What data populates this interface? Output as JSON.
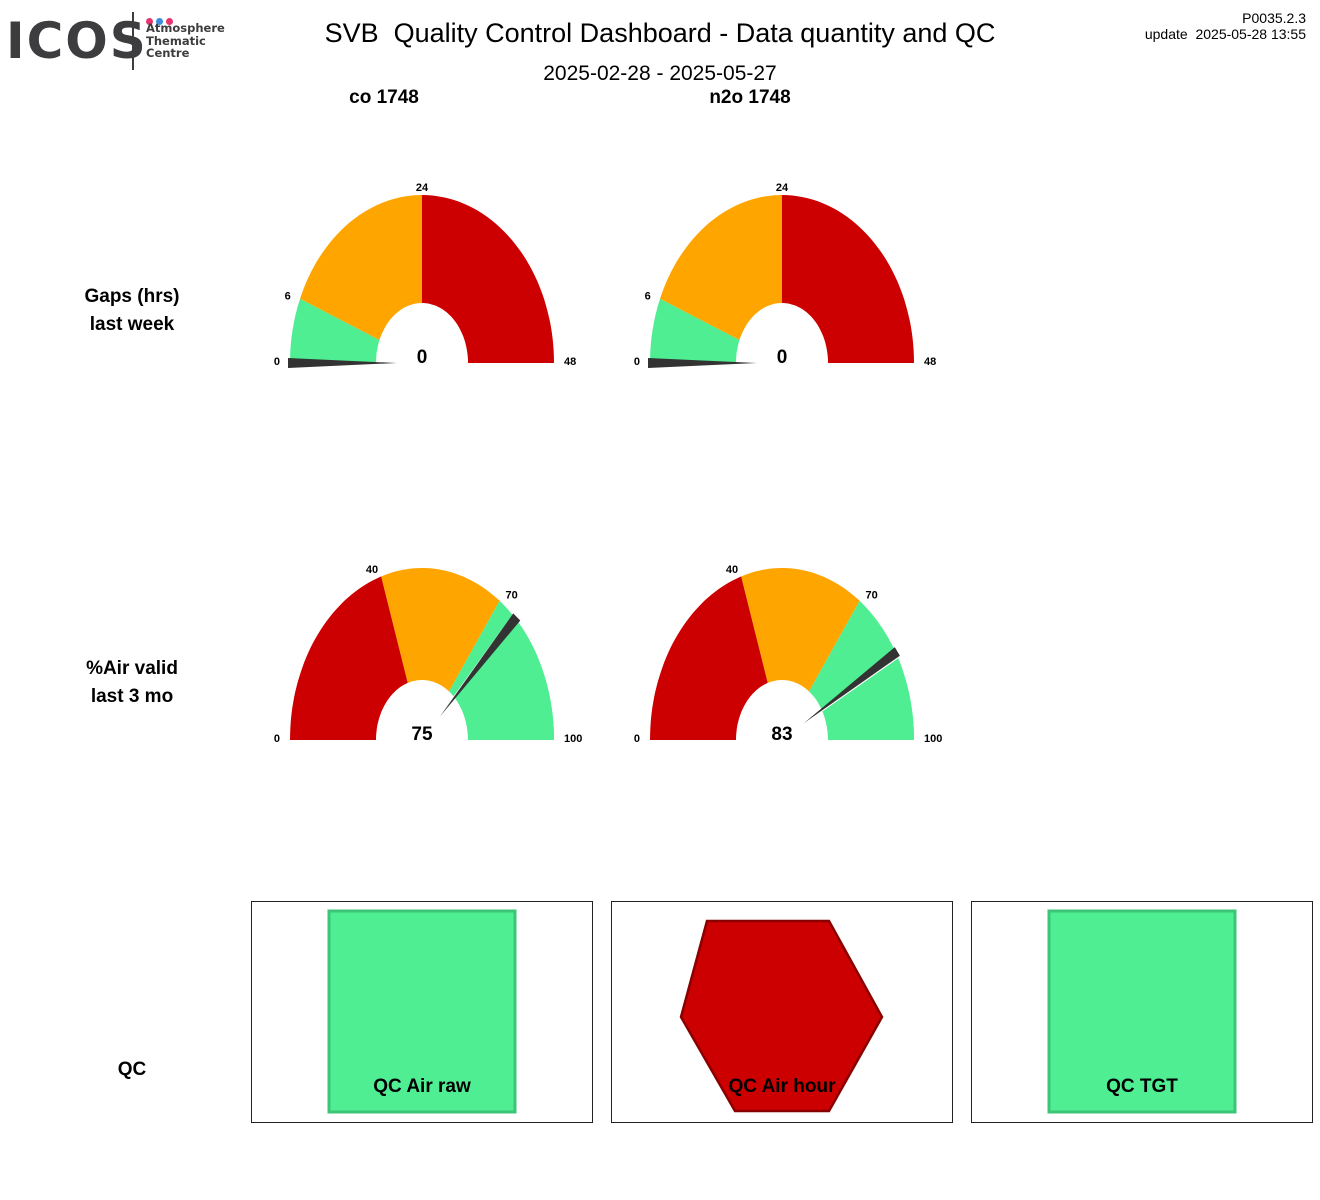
{
  "logo": {
    "word": "ICOS",
    "line1": "Atmosphere",
    "line2": "Thematic",
    "line3": "Centre"
  },
  "header": {
    "title": "SVB  Quality Control Dashboard - Data quantity and QC",
    "version": "P0035.2.3",
    "update": "update  2025-05-28 13:55",
    "date_range": "2025-02-28 - 2025-05-27"
  },
  "columns": [
    {
      "label": "co 1748"
    },
    {
      "label": "n2o 1748"
    }
  ],
  "rows": {
    "gaps": {
      "line1": "Gaps (hrs)",
      "line2": "last week"
    },
    "air_valid": {
      "line1": "%Air valid",
      "line2": "last 3 mo"
    },
    "qc": {
      "label": "QC"
    }
  },
  "colors": {
    "red": "#CC0000",
    "orange": "#FFA500",
    "green": "#4FEE92",
    "needle": "#333333"
  },
  "gauges": {
    "gaps": {
      "min": 0,
      "max": 48,
      "ticks": [
        "0",
        "6",
        "24",
        "48"
      ],
      "bands": [
        {
          "from": 0,
          "to": 6,
          "color": "green"
        },
        {
          "from": 6,
          "to": 24,
          "color": "orange"
        },
        {
          "from": 24,
          "to": 48,
          "color": "red"
        }
      ],
      "items": [
        {
          "value": 0,
          "value_label": "0"
        },
        {
          "value": 0,
          "value_label": "0"
        }
      ]
    },
    "air_valid": {
      "min": 0,
      "max": 100,
      "ticks": [
        "0",
        "40",
        "70",
        "100"
      ],
      "bands": [
        {
          "from": 0,
          "to": 40,
          "color": "red"
        },
        {
          "from": 40,
          "to": 70,
          "color": "orange"
        },
        {
          "from": 70,
          "to": 100,
          "color": "green"
        }
      ],
      "items": [
        {
          "value": 75,
          "value_label": "75",
          "ring_to": 74
        },
        {
          "value": 83,
          "value_label": "83",
          "ring_to": 83
        }
      ]
    }
  },
  "qc": [
    {
      "label": "QC Air raw",
      "status": "ok",
      "shape": "square",
      "color": "green"
    },
    {
      "label": "QC Air hour",
      "status": "bad",
      "shape": "hexagon",
      "color": "red"
    },
    {
      "label": "QC TGT",
      "status": "ok",
      "shape": "square",
      "color": "green"
    }
  ]
}
